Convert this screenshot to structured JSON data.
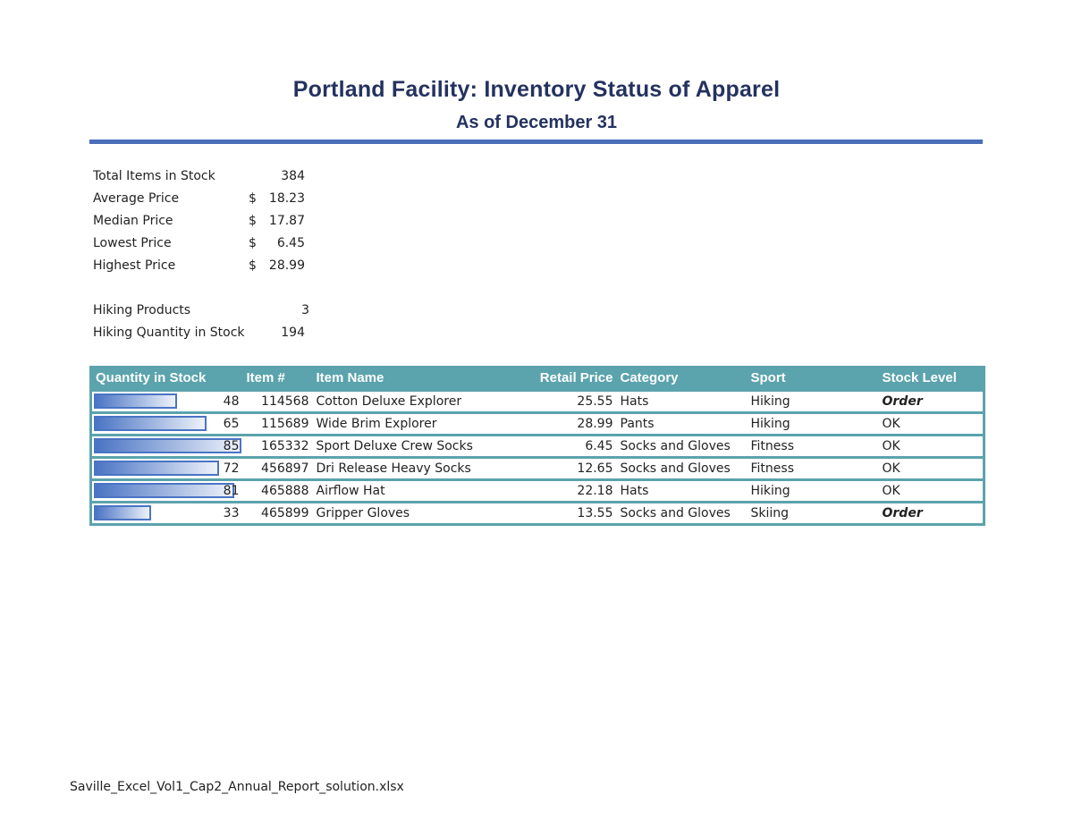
{
  "header": {
    "title": "Portland Facility: Inventory Status of Apparel",
    "subtitle": "As of December 31"
  },
  "colors": {
    "title": "#243260",
    "rule": "#4a6eb8",
    "table_header": "#5ba3ad",
    "data_bar": "#4a74c4"
  },
  "stats": {
    "total_items": {
      "label": "Total Items in Stock",
      "value": "384"
    },
    "average_price": {
      "label": "Average Price",
      "currency": "$",
      "value": "18.23"
    },
    "median_price": {
      "label": "Median Price",
      "currency": "$",
      "value": "17.87"
    },
    "lowest_price": {
      "label": "Lowest Price",
      "currency": "$",
      "value": "6.45"
    },
    "highest_price": {
      "label": "Highest Price",
      "currency": "$",
      "value": "28.99"
    },
    "hiking_products": {
      "label": "Hiking Products",
      "value": "3"
    },
    "hiking_quantity": {
      "label": "Hiking Quantity in Stock",
      "value": "194"
    }
  },
  "table": {
    "columns": [
      "Quantity in Stock",
      "Item #",
      "Item Name",
      "Retail Price",
      "Category",
      "Sport",
      "Stock Level"
    ],
    "bar_max": 85,
    "rows": [
      {
        "qty": 48,
        "item": "114568",
        "name": "Cotton Deluxe Explorer",
        "price": "25.55",
        "category": "Hats",
        "sport": "Hiking",
        "stock": "Order"
      },
      {
        "qty": 65,
        "item": "115689",
        "name": "Wide Brim Explorer",
        "price": "28.99",
        "category": "Pants",
        "sport": "Hiking",
        "stock": "OK"
      },
      {
        "qty": 85,
        "item": "165332",
        "name": "Sport Deluxe Crew Socks",
        "price": "6.45",
        "category": "Socks and Gloves",
        "sport": "Fitness",
        "stock": "OK"
      },
      {
        "qty": 72,
        "item": "456897",
        "name": "Dri Release Heavy Socks",
        "price": "12.65",
        "category": "Socks and Gloves",
        "sport": "Fitness",
        "stock": "OK"
      },
      {
        "qty": 81,
        "item": "465888",
        "name": "Airflow Hat",
        "price": "22.18",
        "category": "Hats",
        "sport": "Hiking",
        "stock": "OK"
      },
      {
        "qty": 33,
        "item": "465899",
        "name": "Gripper Gloves",
        "price": "13.55",
        "category": "Socks and Gloves",
        "sport": "Skiing",
        "stock": "Order"
      }
    ]
  },
  "footer": {
    "filename": "Saville_Excel_Vol1_Cap2_Annual_Report_solution.xlsx"
  }
}
